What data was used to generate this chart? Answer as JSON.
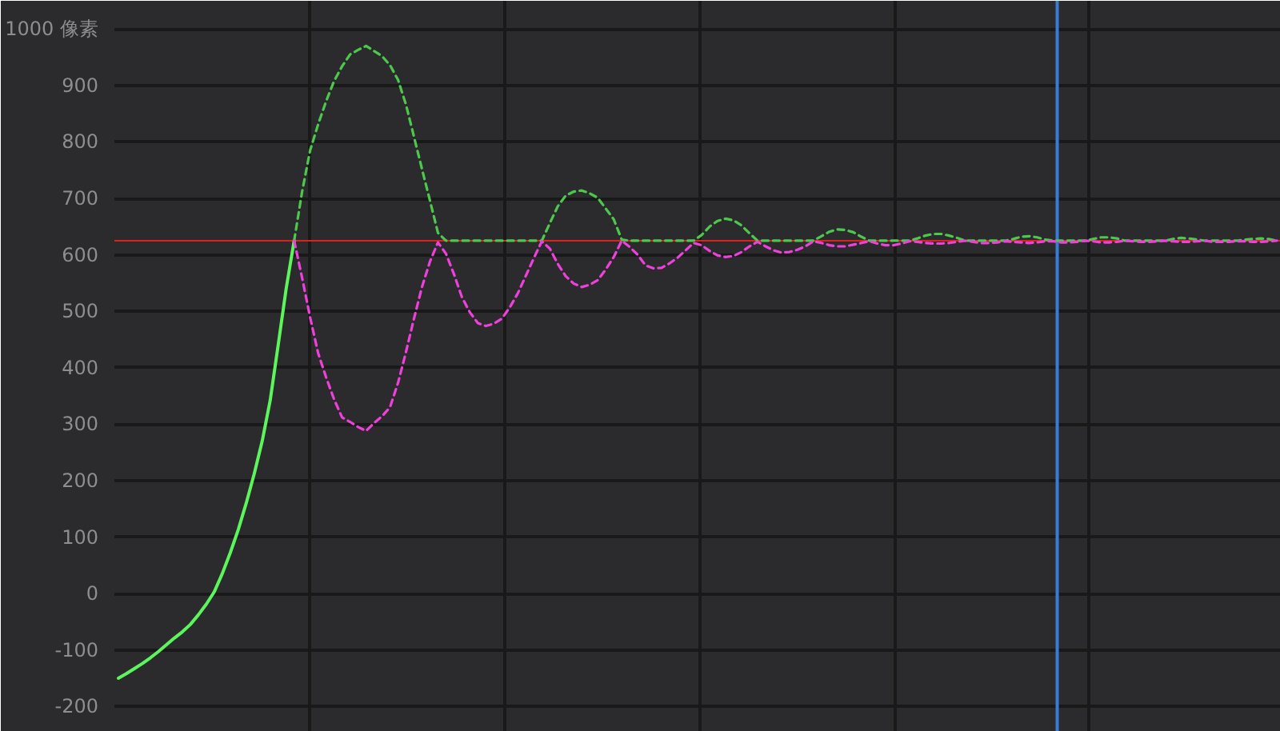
{
  "chart_data": {
    "type": "line",
    "categories": [
      null,
      null,
      null,
      null,
      null,
      null,
      null,
      null,
      null,
      null,
      null,
      null,
      null,
      null,
      null,
      null,
      null,
      null,
      null,
      null,
      null,
      null,
      null,
      null,
      null,
      null,
      null,
      null,
      null,
      null,
      null,
      null,
      null,
      null,
      null,
      null,
      null,
      null,
      null,
      null,
      null,
      null,
      null,
      null,
      null,
      null,
      null,
      null,
      null,
      null,
      null,
      null,
      null,
      null,
      null,
      null,
      null,
      null,
      null,
      null,
      null,
      null,
      null,
      null,
      null,
      null,
      null,
      null,
      null,
      null,
      null,
      null,
      null,
      null,
      null,
      null,
      null,
      null,
      null,
      null,
      null,
      null,
      null,
      null,
      null,
      null,
      null,
      null,
      null,
      null,
      null,
      null,
      null,
      null,
      null,
      null,
      null,
      null,
      null,
      null,
      null,
      null,
      null,
      null,
      null,
      null,
      null,
      null,
      null,
      null,
      null,
      null,
      null,
      null,
      null,
      null,
      null,
      null,
      null,
      null,
      null,
      null,
      null,
      null,
      null,
      null,
      null,
      null,
      null,
      null,
      null,
      null,
      null,
      null,
      null,
      null,
      null,
      null,
      null,
      null,
      null,
      null,
      null,
      null,
      null,
      null
    ],
    "ylim": [
      -245,
      1050
    ],
    "yticks": [
      -200,
      -100,
      0,
      100,
      200,
      300,
      400,
      500,
      600,
      700,
      800,
      900,
      {
        "value": 1000,
        "label": "1000 像素"
      }
    ],
    "tick_labels": "y",
    "grid": true,
    "series": [
      {
        "color": "#5cf55c",
        "line_style": "solid",
        "values": [
          -150,
          -142,
          -133,
          -124,
          -114,
          -103,
          -91,
          -79,
          -68,
          -55,
          -38,
          -19,
          3,
          35,
          72,
          113,
          160,
          212,
          270,
          342,
          440,
          540,
          625,
          null,
          null,
          null,
          null,
          null,
          null,
          null,
          null,
          null,
          null,
          null,
          null,
          null,
          null,
          null,
          null,
          null,
          null,
          null,
          null,
          null,
          null,
          null,
          null,
          null,
          null,
          null,
          null,
          null,
          null,
          null,
          null,
          null,
          null,
          null,
          null,
          null,
          null,
          null,
          null,
          null,
          null,
          null,
          null,
          null,
          null,
          null,
          null,
          null,
          null,
          null,
          null,
          null,
          null,
          null,
          null,
          null,
          null,
          null,
          null,
          null,
          null,
          null,
          null,
          null,
          null,
          null,
          null,
          null,
          null,
          null,
          null,
          null,
          null,
          null,
          null,
          null,
          null,
          null,
          null,
          null,
          null,
          null,
          null,
          null,
          null,
          null,
          null,
          null,
          null,
          null,
          null,
          null,
          null,
          null,
          null,
          null,
          null,
          null,
          null,
          null,
          null,
          null,
          null,
          null,
          null,
          null,
          null,
          null,
          null,
          null,
          null,
          null,
          null,
          null,
          null,
          null,
          null,
          null,
          null,
          null,
          null,
          null
        ]
      },
      {
        "color": "#4cc94c",
        "line_style": "dashed",
        "values": [
          null,
          null,
          null,
          null,
          null,
          null,
          null,
          null,
          null,
          null,
          null,
          null,
          null,
          null,
          null,
          null,
          null,
          null,
          null,
          null,
          null,
          null,
          625,
          712,
          785,
          831,
          872,
          908,
          934,
          955,
          963,
          970,
          961,
          952,
          936,
          910,
          866,
          809,
          752,
          696,
          639,
          625,
          625,
          625,
          625,
          625,
          625,
          625,
          625,
          625,
          625,
          625,
          625,
          625,
          656,
          686,
          705,
          712,
          714,
          709,
          701,
          682,
          663,
          627,
          625,
          625,
          625,
          625,
          625,
          625,
          625,
          625,
          625,
          635,
          650,
          660,
          664,
          661,
          652,
          638,
          625,
          625,
          625,
          625,
          625,
          625,
          625,
          625,
          633,
          641,
          645,
          644,
          640,
          632,
          625,
          625,
          625,
          625,
          625,
          625,
          629,
          634,
          637,
          637,
          634,
          630,
          625,
          625,
          625,
          625,
          625,
          625,
          628,
          632,
          633,
          631,
          627,
          625,
          625,
          625,
          625,
          625,
          628,
          631,
          631,
          629,
          625,
          625,
          625,
          625,
          625,
          625,
          628,
          630,
          629,
          627,
          625,
          625,
          625,
          625,
          625,
          627,
          628,
          629,
          628,
          625
        ]
      },
      {
        "color": "#f040dc",
        "line_style": "dashed",
        "values": [
          null,
          null,
          null,
          null,
          null,
          null,
          null,
          null,
          null,
          null,
          null,
          null,
          null,
          null,
          null,
          null,
          null,
          null,
          null,
          null,
          null,
          null,
          625,
          559,
          489,
          426,
          383,
          344,
          312,
          304,
          295,
          288,
          302,
          314,
          330,
          373,
          428,
          487,
          543,
          588,
          622,
          602,
          566,
          525,
          498,
          479,
          474,
          478,
          487,
          507,
          532,
          563,
          594,
          624,
          611,
          584,
          562,
          549,
          543,
          547,
          555,
          574,
          596,
          625,
          614,
          600,
          581,
          576,
          577,
          585,
          595,
          608,
          621,
          617,
          607,
          599,
          596,
          598,
          605,
          615,
          623,
          615,
          608,
          604,
          605,
          609,
          615,
          624,
          621,
          617,
          615,
          615,
          618,
          621,
          624,
          620,
          617,
          617,
          620,
          624,
          623,
          621,
          620,
          620,
          621,
          623,
          625,
          623,
          621,
          621,
          622,
          624,
          623,
          622,
          621,
          622,
          624,
          624,
          622,
          622,
          623,
          625,
          624,
          622,
          622,
          623,
          625,
          624,
          623,
          623,
          624,
          625,
          624,
          623,
          623,
          624,
          625,
          623,
          623,
          623,
          624,
          624,
          623,
          623,
          624,
          625
        ]
      }
    ],
    "ref_lines": [
      {
        "axis": "y",
        "value": 625,
        "color": "#e0201c"
      }
    ]
  }
}
